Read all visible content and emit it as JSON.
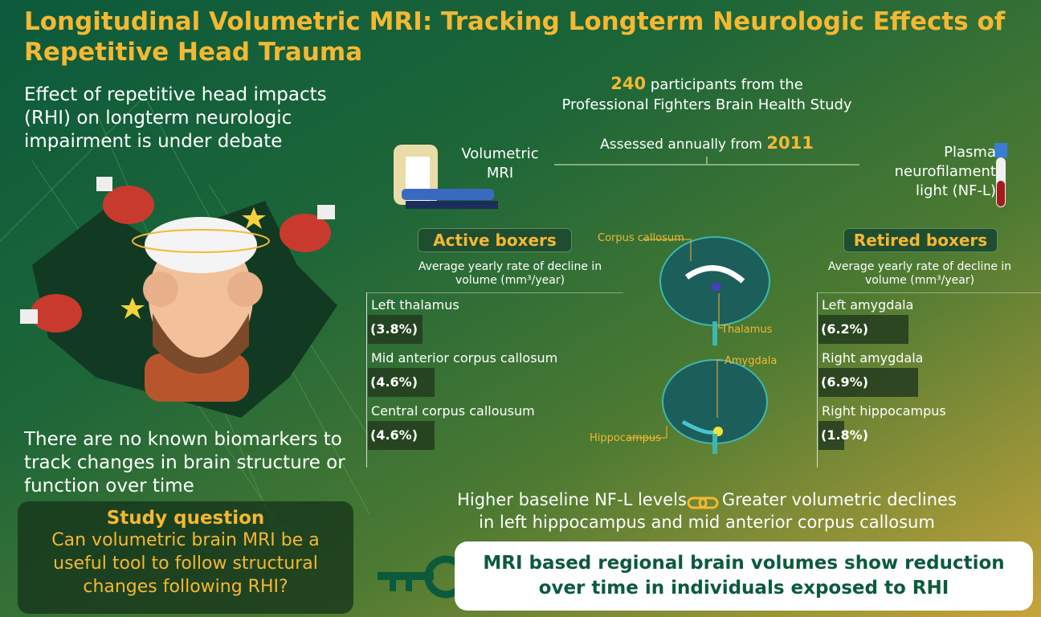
{
  "header": {
    "title": "Longitudinal Volumetric MRI: Tracking Longterm Neurologic Effects of Repetitive Head Trauma"
  },
  "left": {
    "debate": "Effect of repetitive head impacts (RHI) on longterm neurologic impairment is under debate",
    "biomarkers": "There are no known biomarkers to track changes in brain structure or function over time"
  },
  "study_question": {
    "heading": "Study question",
    "text": "Can volumetric brain MRI be a useful tool to follow structural changes following RHI?"
  },
  "participants": {
    "count": 240,
    "text": "participants from the",
    "study": "Professional Fighters Brain Health Study"
  },
  "assessment": {
    "text": "Assessed annually from",
    "year": 2011,
    "left": "Volumetric MRI",
    "right": "Plasma neurofilament light (NF-L)"
  },
  "brain_labels": [
    "Corpus callosum",
    "Thalamus",
    "Amygdala",
    "Hippocampus"
  ],
  "groups": [
    {
      "title": "Active boxers",
      "subtitle": "Average yearly rate of decline in volume (mm³/year)",
      "regions": [
        {
          "name": "Left thalamus",
          "value": 3.8,
          "label": "(3.8%)"
        },
        {
          "name": "Mid anterior corpus callosum",
          "value": 4.6,
          "label": "(4.6%)"
        },
        {
          "name": "Central corpus callousum",
          "value": 4.6,
          "label": "(4.6%)"
        }
      ]
    },
    {
      "title": "Retired boxers",
      "subtitle": "Average yearly rate of decline in volume (mm³/year)",
      "regions": [
        {
          "name": "Left amygdala",
          "value": 6.2,
          "label": "(6.2%)"
        },
        {
          "name": "Right amygdala",
          "value": 6.9,
          "label": "(6.9%)"
        },
        {
          "name": "Right hippocampus",
          "value": 1.8,
          "label": "(1.8%)"
        }
      ]
    }
  ],
  "finding": {
    "left": "Higher baseline NF-L levels",
    "right": "Greater volumetric declines",
    "continuation": "in left hippocampus and mid anterior corpus callosum"
  },
  "conclusion": "MRI based regional brain volumes show reduction over time in individuals exposed to RHI"
}
